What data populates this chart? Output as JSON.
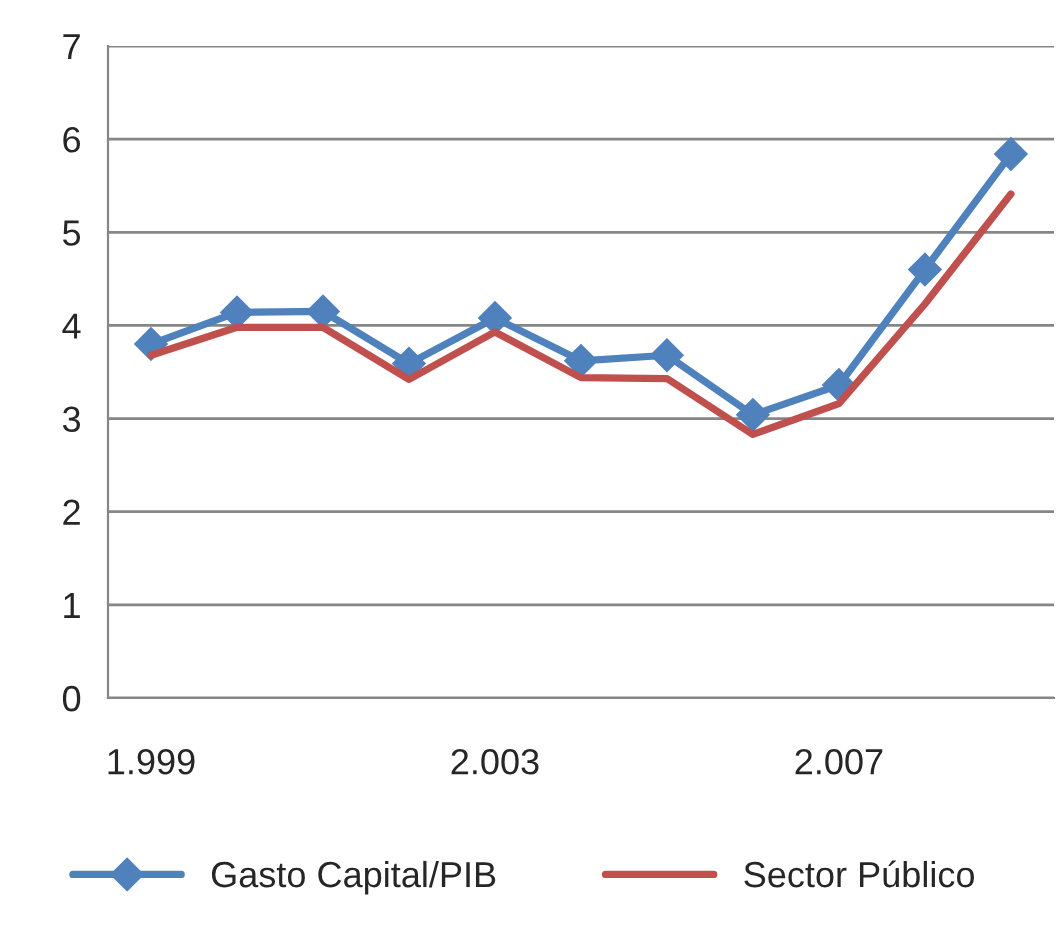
{
  "chart_data": {
    "type": "line",
    "categories": [
      "1.999",
      null,
      null,
      null,
      "2.003",
      null,
      null,
      null,
      "2.007",
      null,
      null
    ],
    "series": [
      {
        "name": "Gasto Capital/PIB",
        "color": "#4f81bd",
        "marker": "diamond",
        "values": [
          3.8,
          4.14,
          4.15,
          3.59,
          4.08,
          3.62,
          3.68,
          3.04,
          3.36,
          4.6,
          5.84
        ]
      },
      {
        "name": "Sector Público",
        "color": "#c0504d",
        "marker": "none",
        "values": [
          3.68,
          3.98,
          3.98,
          3.42,
          3.93,
          3.44,
          3.43,
          2.83,
          3.16,
          4.23,
          5.41
        ]
      }
    ],
    "ylim": [
      0,
      7
    ],
    "yticks": [
      0,
      1,
      2,
      3,
      4,
      5,
      6,
      7
    ],
    "grid": "y",
    "legend": "bottom"
  }
}
